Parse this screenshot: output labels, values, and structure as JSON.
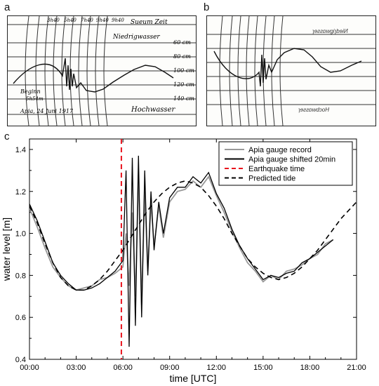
{
  "panels": {
    "a": {
      "letter": "a",
      "header_right": "Sueum Zeit",
      "top_times": [
        "3h40",
        "5h40",
        "7h40",
        "9h40",
        "9h40"
      ],
      "niedrig": "Niedrigwasser",
      "hoch": "Hochwasser",
      "scale": [
        "60 cm",
        "80 cm",
        "100 cm",
        "120 cm",
        "140 cm"
      ],
      "beginn": [
        "Beginn",
        "5h54m"
      ],
      "date": "Apia, 24 Juni 1917"
    },
    "b": {
      "letter": "b"
    },
    "c": {
      "letter": "c"
    }
  },
  "chart_data": {
    "type": "line",
    "xlabel": "time [UTC]",
    "ylabel": "water level [m]",
    "xlim": [
      0,
      21
    ],
    "ylim": [
      0.4,
      1.45
    ],
    "x_ticks": [
      "00:00",
      "03:00",
      "06:00",
      "09:00",
      "12:00",
      "15:00",
      "18:00",
      "21:00"
    ],
    "y_ticks": [
      "0.4",
      "0.6",
      "0.8",
      "1.0",
      "1.2",
      "1.4"
    ],
    "legend_position": "top-right",
    "earthquake_time": 5.9,
    "series": [
      {
        "name": "Apia gauge record",
        "color": "#999999",
        "style": "solid",
        "x": [
          0.0,
          0.5,
          1.0,
          1.5,
          2.0,
          2.5,
          3.0,
          3.5,
          4.0,
          4.5,
          5.0,
          5.5,
          6.0,
          6.2,
          6.4,
          6.6,
          6.8,
          7.0,
          7.2,
          7.4,
          7.6,
          7.8,
          8.0,
          8.3,
          8.6,
          9.0,
          9.5,
          10.0,
          10.5,
          11.0,
          11.5,
          12.0,
          12.5,
          13.0,
          13.5,
          14.0,
          14.5,
          15.0,
          15.5,
          16.0,
          16.5,
          17.0,
          17.5,
          18.0,
          18.5,
          19.0,
          19.5
        ],
        "y": [
          1.12,
          1.03,
          0.93,
          0.84,
          0.79,
          0.75,
          0.73,
          0.74,
          0.75,
          0.78,
          0.79,
          0.81,
          0.84,
          1.0,
          0.75,
          1.1,
          0.7,
          1.28,
          0.66,
          1.2,
          0.82,
          1.15,
          0.94,
          1.13,
          0.98,
          1.15,
          1.2,
          1.21,
          1.25,
          1.22,
          1.27,
          1.18,
          1.1,
          1.01,
          0.93,
          0.86,
          0.82,
          0.77,
          0.8,
          0.78,
          0.82,
          0.83,
          0.85,
          0.88,
          0.9,
          0.95,
          0.97
        ]
      },
      {
        "name": "Apia gauge shifted 20min",
        "color": "#000000",
        "style": "solid",
        "x": [
          0.0,
          0.5,
          1.0,
          1.5,
          2.0,
          2.5,
          3.0,
          3.5,
          4.0,
          4.5,
          5.0,
          5.5,
          6.0,
          6.2,
          6.4,
          6.6,
          6.8,
          7.0,
          7.2,
          7.4,
          7.6,
          7.8,
          8.0,
          8.3,
          8.6,
          9.0,
          9.5,
          10.0,
          10.5,
          11.0,
          11.5,
          12.0,
          12.5,
          13.0,
          13.5,
          14.0,
          14.5,
          15.0,
          15.5,
          16.0,
          16.5,
          17.0,
          17.5,
          18.0,
          18.5,
          19.0,
          19.5
        ],
        "y": [
          1.14,
          1.06,
          0.96,
          0.86,
          0.8,
          0.76,
          0.73,
          0.73,
          0.74,
          0.76,
          0.79,
          0.82,
          0.87,
          1.3,
          0.46,
          1.36,
          0.56,
          1.37,
          0.6,
          1.3,
          0.8,
          1.2,
          0.92,
          1.15,
          1.0,
          1.17,
          1.22,
          1.22,
          1.27,
          1.24,
          1.29,
          1.19,
          1.12,
          1.02,
          0.94,
          0.88,
          0.83,
          0.78,
          0.8,
          0.79,
          0.81,
          0.82,
          0.86,
          0.88,
          0.91,
          0.94,
          0.97
        ]
      },
      {
        "name": "Predicted tide",
        "color": "#000000",
        "style": "dashed",
        "x": [
          0.0,
          0.5,
          1.0,
          1.5,
          2.0,
          2.5,
          3.0,
          3.5,
          4.0,
          4.5,
          5.0,
          5.5,
          6.0,
          6.5,
          7.0,
          7.5,
          8.0,
          8.5,
          9.0,
          9.5,
          10.0,
          10.5,
          11.0,
          11.5,
          12.0,
          12.5,
          13.0,
          13.5,
          14.0,
          14.5,
          15.0,
          15.5,
          16.0,
          16.5,
          17.0,
          17.5,
          18.0,
          18.5,
          19.0,
          19.5,
          20.0,
          20.5,
          21.0
        ],
        "y": [
          1.13,
          1.05,
          0.95,
          0.86,
          0.79,
          0.75,
          0.73,
          0.73,
          0.75,
          0.78,
          0.82,
          0.87,
          0.92,
          0.98,
          1.04,
          1.1,
          1.15,
          1.19,
          1.22,
          1.24,
          1.25,
          1.24,
          1.22,
          1.18,
          1.13,
          1.07,
          1.0,
          0.94,
          0.88,
          0.84,
          0.81,
          0.79,
          0.78,
          0.79,
          0.81,
          0.84,
          0.88,
          0.92,
          0.97,
          1.02,
          1.07,
          1.11,
          1.15
        ]
      }
    ],
    "legend_entries": [
      {
        "label": "Apia gauge record",
        "color": "#999999",
        "style": "solid"
      },
      {
        "label": "Apia gauge shifted 20min",
        "color": "#000000",
        "style": "solid"
      },
      {
        "label": "Earthquake time",
        "color": "#e8141e",
        "style": "dashed"
      },
      {
        "label": "Predicted tide",
        "color": "#000000",
        "style": "dashed"
      }
    ]
  }
}
